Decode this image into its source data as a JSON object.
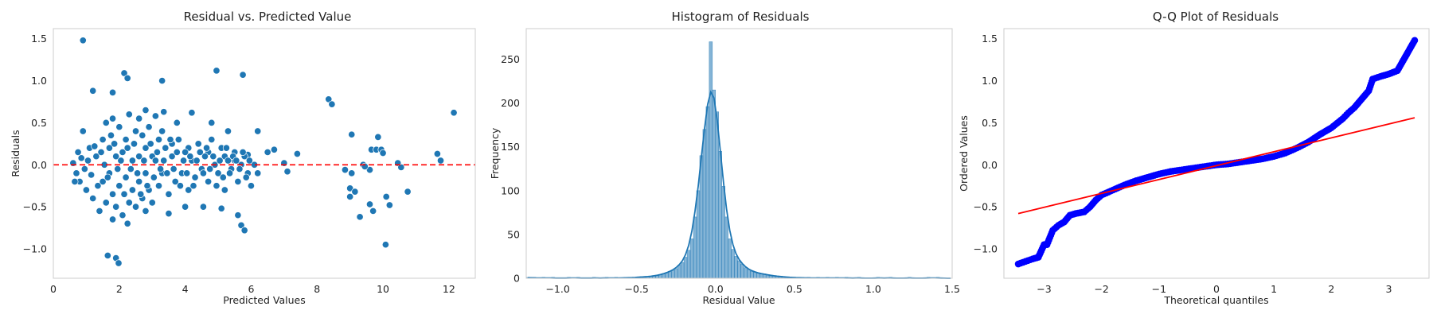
{
  "chart_data": [
    {
      "type": "scatter",
      "title": "Residual vs. Predicted Value",
      "xlabel": "Predicted Values",
      "ylabel": "Residuals",
      "xlim": [
        0,
        12.8
      ],
      "ylim": [
        -1.35,
        1.62
      ],
      "xticks": [
        0,
        2,
        4,
        6,
        8,
        10,
        12
      ],
      "yticks": [
        -1.0,
        -0.5,
        0.0,
        0.5,
        1.0,
        1.5
      ],
      "xtick_labels": [
        "0",
        "2",
        "4",
        "6",
        "8",
        "10",
        "12"
      ],
      "ytick_labels": [
        "−1.0",
        "−0.5",
        "0.0",
        "0.5",
        "1.0",
        "1.5"
      ],
      "reference_line": {
        "y": 0.0,
        "color": "#ff0000",
        "style": "dashed"
      },
      "marker_color": "#1f77b4",
      "points": [
        [
          0.9,
          1.48
        ],
        [
          1.2,
          0.88
        ],
        [
          1.8,
          0.86
        ],
        [
          2.15,
          1.09
        ],
        [
          2.25,
          1.03
        ],
        [
          3.3,
          1.0
        ],
        [
          4.95,
          1.12
        ],
        [
          5.75,
          1.07
        ],
        [
          1.65,
          -1.08
        ],
        [
          1.9,
          -1.11
        ],
        [
          1.98,
          -1.17
        ],
        [
          2.25,
          -0.7
        ],
        [
          1.8,
          -0.65
        ],
        [
          5.7,
          -0.72
        ],
        [
          5.8,
          -0.78
        ],
        [
          3.35,
          0.63
        ],
        [
          3.1,
          0.58
        ],
        [
          2.6,
          0.55
        ],
        [
          2.8,
          0.65
        ],
        [
          4.2,
          0.62
        ],
        [
          4.8,
          0.5
        ],
        [
          5.3,
          0.4
        ],
        [
          6.2,
          0.4
        ],
        [
          3.75,
          0.5
        ],
        [
          2.8,
          -0.55
        ],
        [
          3.5,
          -0.58
        ],
        [
          4.0,
          -0.5
        ],
        [
          4.55,
          -0.5
        ],
        [
          5.1,
          -0.52
        ],
        [
          5.6,
          -0.6
        ],
        [
          3.2,
          0.3
        ],
        [
          3.6,
          0.25
        ],
        [
          4.1,
          0.2
        ],
        [
          4.7,
          0.15
        ],
        [
          5.2,
          0.1
        ],
        [
          5.5,
          0.05
        ],
        [
          5.9,
          0.12
        ],
        [
          6.1,
          0.0
        ],
        [
          6.2,
          -0.1
        ],
        [
          6.0,
          -0.25
        ],
        [
          6.5,
          0.15
        ],
        [
          6.7,
          0.18
        ],
        [
          7.0,
          0.02
        ],
        [
          7.1,
          -0.08
        ],
        [
          7.4,
          0.13
        ],
        [
          8.35,
          0.78
        ],
        [
          8.45,
          0.72
        ],
        [
          9.05,
          0.36
        ],
        [
          9.85,
          0.33
        ],
        [
          9.65,
          0.18
        ],
        [
          9.8,
          0.18
        ],
        [
          9.95,
          0.18
        ],
        [
          9.6,
          -0.06
        ],
        [
          10.0,
          0.14
        ],
        [
          9.4,
          0.0
        ],
        [
          9.45,
          -0.02
        ],
        [
          8.85,
          -0.06
        ],
        [
          9.05,
          -0.1
        ],
        [
          9.0,
          -0.28
        ],
        [
          9.15,
          -0.32
        ],
        [
          9.0,
          -0.38
        ],
        [
          9.6,
          -0.47
        ],
        [
          9.3,
          -0.62
        ],
        [
          9.7,
          -0.55
        ],
        [
          10.08,
          -0.95
        ],
        [
          10.1,
          -0.38
        ],
        [
          10.2,
          -0.48
        ],
        [
          10.45,
          0.02
        ],
        [
          10.55,
          -0.03
        ],
        [
          10.75,
          -0.32
        ],
        [
          11.65,
          0.13
        ],
        [
          11.75,
          0.05
        ],
        [
          12.15,
          0.62
        ],
        [
          0.6,
          0.02
        ],
        [
          0.7,
          -0.1
        ],
        [
          0.8,
          -0.2
        ],
        [
          0.75,
          0.15
        ],
        [
          0.9,
          0.4
        ],
        [
          1.0,
          -0.3
        ],
        [
          1.1,
          0.2
        ],
        [
          1.2,
          -0.4
        ],
        [
          1.3,
          0.1
        ],
        [
          1.4,
          -0.55
        ],
        [
          1.5,
          0.3
        ],
        [
          1.5,
          -0.2
        ],
        [
          1.6,
          0.5
        ],
        [
          1.6,
          -0.45
        ],
        [
          1.7,
          0.2
        ],
        [
          1.7,
          -0.1
        ],
        [
          1.8,
          0.55
        ],
        [
          1.8,
          -0.35
        ],
        [
          1.9,
          0.1
        ],
        [
          1.9,
          -0.5
        ],
        [
          2.0,
          0.45
        ],
        [
          2.0,
          -0.25
        ],
        [
          2.1,
          0.15
        ],
        [
          2.1,
          -0.6
        ],
        [
          2.2,
          0.3
        ],
        [
          2.2,
          -0.15
        ],
        [
          2.3,
          0.6
        ],
        [
          2.3,
          -0.45
        ],
        [
          2.4,
          0.05
        ],
        [
          2.4,
          -0.3
        ],
        [
          2.5,
          0.4
        ],
        [
          2.5,
          -0.5
        ],
        [
          2.6,
          0.1
        ],
        [
          2.6,
          -0.2
        ],
        [
          2.7,
          0.35
        ],
        [
          2.7,
          -0.4
        ],
        [
          2.8,
          0.2
        ],
        [
          2.8,
          -0.1
        ],
        [
          2.9,
          0.45
        ],
        [
          2.9,
          -0.3
        ],
        [
          3.0,
          0.1
        ],
        [
          3.0,
          -0.45
        ],
        [
          3.1,
          0.05
        ],
        [
          3.2,
          -0.25
        ],
        [
          3.3,
          0.4
        ],
        [
          3.3,
          -0.1
        ],
        [
          3.4,
          0.2
        ],
        [
          3.5,
          -0.35
        ],
        [
          3.6,
          0.1
        ],
        [
          3.7,
          -0.2
        ],
        [
          3.8,
          0.3
        ],
        [
          3.9,
          -0.1
        ],
        [
          4.0,
          0.15
        ],
        [
          4.1,
          -0.3
        ],
        [
          4.2,
          0.05
        ],
        [
          4.3,
          -0.15
        ],
        [
          4.4,
          0.25
        ],
        [
          4.5,
          -0.05
        ],
        [
          4.6,
          0.1
        ],
        [
          4.7,
          -0.2
        ],
        [
          4.8,
          0.3
        ],
        [
          4.9,
          0.0
        ],
        [
          5.0,
          -0.1
        ],
        [
          5.1,
          0.2
        ],
        [
          5.2,
          -0.3
        ],
        [
          5.3,
          0.05
        ],
        [
          5.4,
          -0.05
        ],
        [
          5.5,
          0.15
        ],
        [
          5.6,
          -0.2
        ],
        [
          5.7,
          0.0
        ],
        [
          5.8,
          0.1
        ],
        [
          5.9,
          -0.1
        ],
        [
          0.65,
          -0.2
        ],
        [
          0.85,
          0.08
        ],
        [
          0.95,
          -0.05
        ],
        [
          1.05,
          0.05
        ],
        [
          1.15,
          -0.12
        ],
        [
          1.25,
          0.22
        ],
        [
          1.35,
          -0.25
        ],
        [
          1.45,
          0.15
        ],
        [
          1.55,
          0.0
        ],
        [
          1.65,
          -0.15
        ],
        [
          1.75,
          0.35
        ],
        [
          1.85,
          0.25
        ],
        [
          1.95,
          -0.05
        ],
        [
          2.05,
          0.05
        ],
        [
          2.15,
          -0.35
        ],
        [
          2.25,
          0.2
        ],
        [
          2.35,
          -0.05
        ],
        [
          2.45,
          0.25
        ],
        [
          2.55,
          -0.1
        ],
        [
          2.65,
          -0.35
        ],
        [
          2.75,
          0.05
        ],
        [
          2.85,
          -0.25
        ],
        [
          2.95,
          0.25
        ],
        [
          3.05,
          -0.15
        ],
        [
          3.15,
          0.15
        ],
        [
          3.25,
          -0.05
        ],
        [
          3.35,
          0.05
        ],
        [
          3.45,
          -0.1
        ],
        [
          3.55,
          0.3
        ],
        [
          3.65,
          -0.05
        ],
        [
          3.75,
          0.15
        ],
        [
          3.85,
          -0.25
        ],
        [
          3.95,
          0.05
        ],
        [
          4.05,
          -0.1
        ],
        [
          4.15,
          0.1
        ],
        [
          4.25,
          -0.25
        ],
        [
          4.35,
          0.05
        ],
        [
          4.45,
          0.15
        ],
        [
          4.55,
          -0.1
        ],
        [
          4.65,
          0.2
        ],
        [
          4.75,
          -0.05
        ],
        [
          4.85,
          0.1
        ],
        [
          4.95,
          -0.25
        ],
        [
          5.05,
          0.05
        ],
        [
          5.15,
          -0.15
        ],
        [
          5.25,
          0.2
        ],
        [
          5.35,
          -0.1
        ],
        [
          5.45,
          0.1
        ],
        [
          5.55,
          0.05
        ],
        [
          5.65,
          -0.05
        ],
        [
          5.75,
          0.15
        ],
        [
          5.85,
          -0.15
        ],
        [
          5.95,
          0.05
        ]
      ]
    },
    {
      "type": "bar",
      "title": "Histogram of Residuals",
      "xlabel": "Residual Value",
      "ylabel": "Frequency",
      "xlim": [
        -1.2,
        1.5
      ],
      "ylim": [
        0,
        285
      ],
      "xticks": [
        -1.0,
        -0.5,
        0.0,
        0.5,
        1.0,
        1.5
      ],
      "yticks": [
        0,
        50,
        100,
        150,
        200,
        250
      ],
      "xtick_labels": [
        "−1.0",
        "−0.5",
        "0.0",
        "0.5",
        "1.0",
        "1.5"
      ],
      "ytick_labels": [
        "0",
        "50",
        "100",
        "150",
        "200",
        "250"
      ],
      "bar_color": "#1f77b4",
      "kde_color": "#1f77b4",
      "bin_start": -1.2,
      "bin_width": 0.02,
      "values": [
        1,
        0,
        1,
        0,
        0,
        1,
        0,
        0,
        1,
        0,
        0,
        0,
        0,
        1,
        0,
        0,
        1,
        0,
        0,
        0,
        0,
        1,
        0,
        0,
        0,
        1,
        0,
        0,
        1,
        0,
        0,
        1,
        1,
        0,
        1,
        1,
        2,
        1,
        2,
        2,
        3,
        3,
        4,
        5,
        6,
        8,
        9,
        11,
        15,
        18,
        24,
        32,
        45,
        70,
        100,
        140,
        170,
        196,
        270,
        215,
        190,
        145,
        105,
        70,
        45,
        33,
        25,
        20,
        16,
        12,
        10,
        8,
        7,
        6,
        5,
        5,
        4,
        3,
        3,
        2,
        2,
        2,
        1,
        1,
        1,
        1,
        0,
        1,
        0,
        1,
        0,
        0,
        1,
        0,
        0,
        1,
        0,
        0,
        1,
        0,
        0,
        1,
        0,
        0,
        0,
        1,
        0,
        0,
        0,
        0,
        0,
        1,
        0,
        0,
        0,
        1,
        0,
        0,
        0,
        0,
        0,
        1,
        0,
        0,
        0,
        0,
        0,
        1,
        0,
        0,
        1,
        0,
        0,
        0,
        0
      ]
    },
    {
      "type": "scatter",
      "title": "Q-Q Plot of Residuals",
      "xlabel": "Theoretical quantiles",
      "ylabel": "Ordered Values",
      "xlim": [
        -3.7,
        3.7
      ],
      "ylim": [
        -1.35,
        1.62
      ],
      "xticks": [
        -3,
        -2,
        -1,
        0,
        1,
        2,
        3
      ],
      "yticks": [
        -1.0,
        -0.5,
        0.0,
        0.5,
        1.0,
        1.5
      ],
      "xtick_labels": [
        "−3",
        "−2",
        "−1",
        "0",
        "1",
        "2",
        "3"
      ],
      "ytick_labels": [
        "−1.0",
        "−0.5",
        "0.0",
        "0.5",
        "1.0",
        "1.5"
      ],
      "marker_color": "#0000ff",
      "fit_line": {
        "x": [
          -3.45,
          3.45
        ],
        "y": [
          -0.58,
          0.56
        ],
        "color": "#ff0000"
      },
      "curve_points": [
        [
          -3.45,
          -1.18
        ],
        [
          -3.2,
          -1.12
        ],
        [
          -3.1,
          -1.1
        ],
        [
          -3.0,
          -0.95
        ],
        [
          -2.95,
          -0.95
        ],
        [
          -2.85,
          -0.78
        ],
        [
          -2.75,
          -0.72
        ],
        [
          -2.65,
          -0.68
        ],
        [
          -2.55,
          -0.6
        ],
        [
          -2.45,
          -0.58
        ],
        [
          -2.3,
          -0.56
        ],
        [
          -2.2,
          -0.5
        ],
        [
          -2.1,
          -0.42
        ],
        [
          -2.0,
          -0.36
        ],
        [
          -1.8,
          -0.3
        ],
        [
          -1.6,
          -0.24
        ],
        [
          -1.4,
          -0.19
        ],
        [
          -1.2,
          -0.15
        ],
        [
          -1.0,
          -0.11
        ],
        [
          -0.8,
          -0.08
        ],
        [
          -0.6,
          -0.06
        ],
        [
          -0.4,
          -0.04
        ],
        [
          -0.2,
          -0.02
        ],
        [
          0.0,
          0.0
        ],
        [
          0.2,
          0.01
        ],
        [
          0.4,
          0.03
        ],
        [
          0.6,
          0.05
        ],
        [
          0.8,
          0.07
        ],
        [
          1.0,
          0.1
        ],
        [
          1.2,
          0.14
        ],
        [
          1.4,
          0.2
        ],
        [
          1.6,
          0.27
        ],
        [
          1.8,
          0.36
        ],
        [
          2.0,
          0.44
        ],
        [
          2.2,
          0.55
        ],
        [
          2.3,
          0.62
        ],
        [
          2.4,
          0.68
        ],
        [
          2.55,
          0.8
        ],
        [
          2.65,
          0.88
        ],
        [
          2.72,
          1.02
        ],
        [
          2.85,
          1.05
        ],
        [
          3.0,
          1.08
        ],
        [
          3.15,
          1.12
        ],
        [
          3.45,
          1.48
        ]
      ]
    }
  ]
}
